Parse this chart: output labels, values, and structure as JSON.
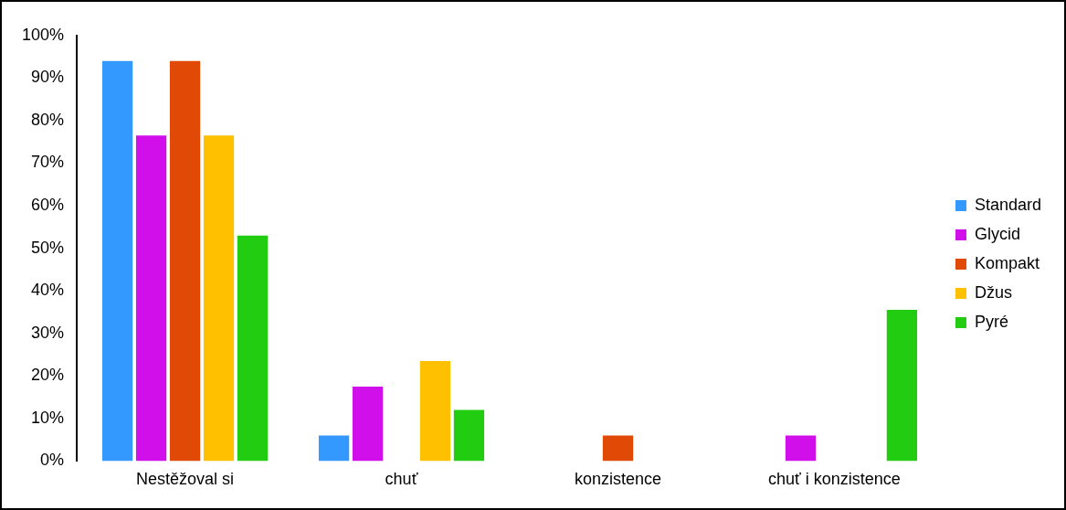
{
  "chart_data": {
    "type": "bar",
    "categories": [
      "Nestěžoval si",
      "chuť",
      "konzistence",
      "chuť i konzistence"
    ],
    "series": [
      {
        "name": "Standard",
        "color": "#3399ff",
        "values": [
          94,
          6,
          0,
          0
        ]
      },
      {
        "name": "Glycid",
        "color": "#d10fea",
        "values": [
          76.5,
          17.5,
          0,
          6
        ]
      },
      {
        "name": "Kompakt",
        "color": "#e04a06",
        "values": [
          94,
          0,
          6,
          0
        ]
      },
      {
        "name": "Džus",
        "color": "#ffc000",
        "values": [
          76.5,
          23.5,
          0,
          0
        ]
      },
      {
        "name": "Pyré",
        "color": "#22cc11",
        "values": [
          53,
          12,
          0,
          35.5
        ]
      }
    ],
    "ylim": [
      0,
      100
    ],
    "yticks": [
      {
        "value": 0,
        "label": "0%"
      },
      {
        "value": 10,
        "label": "10%"
      },
      {
        "value": 20,
        "label": "20%"
      },
      {
        "value": 30,
        "label": "30%"
      },
      {
        "value": 40,
        "label": "40%"
      },
      {
        "value": 50,
        "label": "50%"
      },
      {
        "value": 60,
        "label": "60%"
      },
      {
        "value": 70,
        "label": "70%"
      },
      {
        "value": 80,
        "label": "80%"
      },
      {
        "value": 90,
        "label": "90%"
      },
      {
        "value": 100,
        "label": "100%"
      }
    ],
    "grid": false,
    "legend": "right"
  }
}
